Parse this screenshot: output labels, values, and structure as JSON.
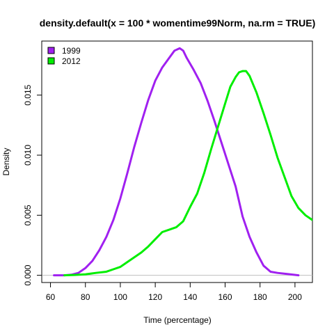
{
  "chart_data": {
    "type": "line",
    "title": "density.default(x = 100 * womentime99Norm, na.rm = TRUE)",
    "xlabel": "Time (percentage)",
    "ylabel": "Density",
    "xlim": [
      55,
      210
    ],
    "ylim": [
      -0.0006,
      0.0195
    ],
    "x_ticks": [
      60,
      80,
      100,
      120,
      140,
      160,
      180,
      200
    ],
    "x_tick_labels": [
      "60",
      "80",
      "100",
      "120",
      "140",
      "160",
      "180",
      "200"
    ],
    "y_ticks": [
      0.0,
      0.005,
      0.01,
      0.015
    ],
    "y_tick_labels": [
      "0.000",
      "0.005",
      "0.010",
      "0.015"
    ],
    "grid": false,
    "baseline": 0,
    "legend": {
      "position": "top-left",
      "entries": [
        "1999",
        "2012"
      ]
    },
    "series": [
      {
        "name": "1999",
        "color": "#a020f0",
        "x": [
          62,
          68,
          72,
          76,
          80,
          84,
          88,
          92,
          96,
          100,
          104,
          108,
          112,
          116,
          120,
          124,
          128,
          131,
          134,
          136,
          138,
          142,
          146,
          150,
          154,
          158,
          162,
          166,
          170,
          174,
          178,
          182,
          186,
          190,
          196,
          202
        ],
        "y": [
          0.0,
          0.0,
          5e-05,
          0.0002,
          0.0006,
          0.0012,
          0.0021,
          0.0032,
          0.0046,
          0.0064,
          0.0085,
          0.0107,
          0.0127,
          0.0146,
          0.0162,
          0.0173,
          0.0181,
          0.0187,
          0.0189,
          0.0187,
          0.0181,
          0.0171,
          0.016,
          0.0145,
          0.0128,
          0.011,
          0.0092,
          0.0074,
          0.0049,
          0.0032,
          0.0019,
          0.0008,
          0.0003,
          0.0002,
          0.0001,
          0.0
        ]
      },
      {
        "name": "2012",
        "color": "#00ee00",
        "x": [
          68,
          74,
          80,
          86,
          92,
          96,
          100,
          104,
          108,
          112,
          116,
          120,
          124,
          128,
          132,
          136,
          140,
          144,
          148,
          152,
          156,
          160,
          163,
          166,
          168,
          170,
          172,
          174,
          178,
          182,
          186,
          190,
          194,
          198,
          202,
          206,
          210
        ],
        "y": [
          0.0,
          3e-05,
          8e-05,
          0.0002,
          0.0003,
          0.0005,
          0.0007,
          0.0011,
          0.0015,
          0.0019,
          0.0024,
          0.003,
          0.0036,
          0.0038,
          0.004,
          0.0045,
          0.0057,
          0.0068,
          0.0085,
          0.0105,
          0.0124,
          0.0143,
          0.0157,
          0.0165,
          0.0169,
          0.017,
          0.017,
          0.0166,
          0.0152,
          0.0135,
          0.0117,
          0.0098,
          0.0082,
          0.0066,
          0.0056,
          0.005,
          0.0046
        ]
      }
    ]
  }
}
